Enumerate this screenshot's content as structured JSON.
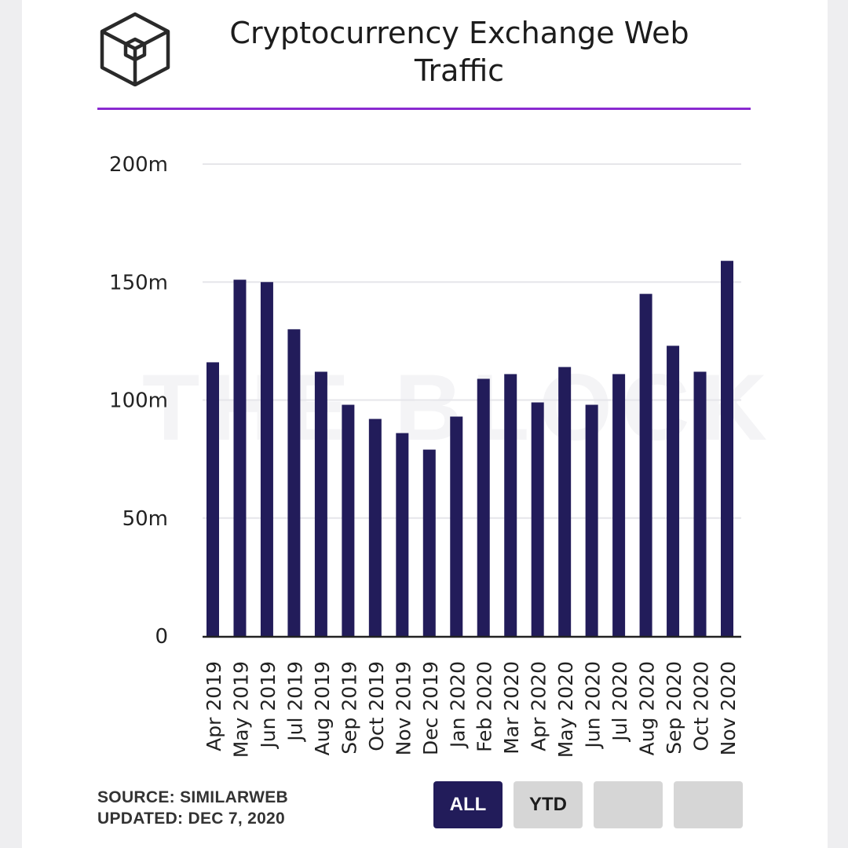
{
  "header": {
    "title_line1": "Cryptocurrency Exchange Web",
    "title_line2": "Traffic"
  },
  "footer": {
    "source": "SOURCE: SIMILARWEB",
    "updated": "UPDATED: DEC 7, 2020"
  },
  "range_buttons": [
    {
      "label": "ALL",
      "active": true
    },
    {
      "label": "YTD",
      "active": false
    },
    {
      "label": "",
      "active": false
    },
    {
      "label": "",
      "active": false
    }
  ],
  "colors": {
    "bar": "#221c5a",
    "accent_rule": "#8a2ad0",
    "grid": "#e6e6ea",
    "axis": "#222222"
  },
  "chart_data": {
    "type": "bar",
    "title": "Cryptocurrency Exchange Web Traffic",
    "categories": [
      "Apr 2019",
      "May 2019",
      "Jun 2019",
      "Jul 2019",
      "Aug 2019",
      "Sep 2019",
      "Oct 2019",
      "Nov 2019",
      "Dec 2019",
      "Jan 2020",
      "Feb 2020",
      "Mar 2020",
      "Apr 2020",
      "May 2020",
      "Jun 2020",
      "Jul 2020",
      "Aug 2020",
      "Sep 2020",
      "Oct 2020",
      "Nov 2020"
    ],
    "values": [
      116,
      151,
      150,
      130,
      112,
      98,
      92,
      86,
      79,
      93,
      109,
      111,
      99,
      114,
      98,
      111,
      145,
      123,
      112,
      159
    ],
    "unit": "m",
    "ylim": [
      0,
      200
    ],
    "yticks": [
      0,
      50,
      100,
      150,
      200
    ],
    "ytick_labels": [
      "0",
      "50m",
      "100m",
      "150m",
      "200m"
    ],
    "grid": true,
    "legend": "none"
  }
}
